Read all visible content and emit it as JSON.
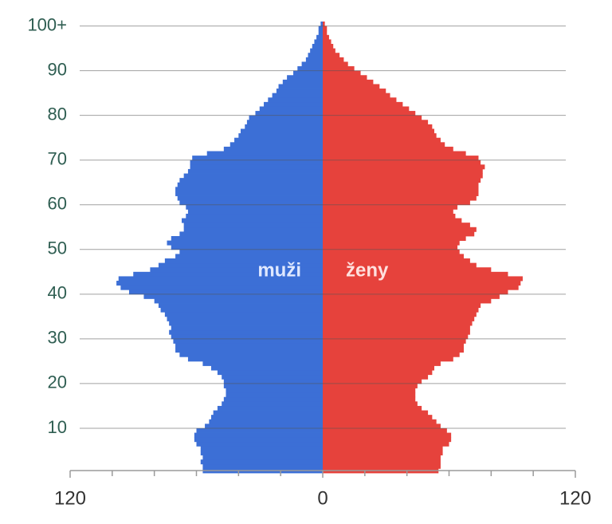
{
  "chart_data": {
    "type": "population-pyramid",
    "y": [
      0,
      1,
      2,
      3,
      4,
      5,
      6,
      7,
      8,
      9,
      10,
      11,
      12,
      13,
      14,
      15,
      16,
      17,
      18,
      19,
      20,
      21,
      22,
      23,
      24,
      25,
      26,
      27,
      28,
      29,
      30,
      31,
      32,
      33,
      34,
      35,
      36,
      37,
      38,
      39,
      40,
      41,
      42,
      43,
      44,
      45,
      46,
      47,
      48,
      49,
      50,
      51,
      52,
      53,
      54,
      55,
      56,
      57,
      58,
      59,
      60,
      61,
      62,
      63,
      64,
      65,
      66,
      67,
      68,
      69,
      70,
      71,
      72,
      73,
      74,
      75,
      76,
      77,
      78,
      79,
      80,
      81,
      82,
      83,
      84,
      85,
      86,
      87,
      88,
      89,
      90,
      91,
      92,
      93,
      94,
      95,
      96,
      97,
      98,
      99,
      100
    ],
    "series": [
      {
        "name": "muži",
        "color": "#3c6fd6",
        "side": "left",
        "values": [
          57,
          57,
          58,
          57,
          58,
          58,
          60,
          61,
          61,
          60,
          56,
          54,
          53,
          52,
          50,
          48,
          47,
          46,
          46,
          47,
          47,
          48,
          50,
          53,
          57,
          64,
          68,
          70,
          70,
          71,
          72,
          73,
          72,
          73,
          74,
          75,
          77,
          78,
          80,
          85,
          92,
          96,
          98,
          97,
          90,
          82,
          78,
          75,
          70,
          68,
          72,
          74,
          72,
          68,
          66,
          66,
          67,
          65,
          64,
          65,
          68,
          69,
          70,
          70,
          69,
          68,
          66,
          64,
          63,
          63,
          62,
          55,
          47,
          44,
          42,
          40,
          39,
          37,
          36,
          35,
          32,
          30,
          28,
          26,
          24,
          22,
          21,
          19,
          17,
          14,
          12,
          10,
          8,
          7,
          6,
          5,
          4,
          3,
          2,
          2,
          1
        ]
      },
      {
        "name": "ženy",
        "color": "#e6423c",
        "side": "right",
        "values": [
          55,
          56,
          56,
          56,
          57,
          57,
          60,
          61,
          61,
          59,
          56,
          54,
          52,
          50,
          47,
          45,
          44,
          44,
          44,
          45,
          47,
          50,
          52,
          53,
          56,
          62,
          65,
          67,
          67,
          68,
          69,
          70,
          70,
          71,
          72,
          73,
          74,
          75,
          80,
          84,
          88,
          93,
          94,
          95,
          88,
          80,
          73,
          70,
          67,
          65,
          64,
          65,
          68,
          72,
          73,
          70,
          66,
          63,
          62,
          64,
          70,
          73,
          74,
          74,
          74,
          75,
          76,
          76,
          77,
          75,
          74,
          68,
          62,
          58,
          56,
          54,
          53,
          52,
          50,
          47,
          44,
          41,
          38,
          35,
          32,
          30,
          27,
          24,
          21,
          18,
          15,
          12,
          10,
          8,
          6,
          5,
          4,
          3,
          2,
          2,
          1
        ]
      }
    ],
    "xlim": [
      -120,
      120
    ],
    "xticks": [
      {
        "value": -120,
        "label": "120"
      },
      0,
      {
        "value": 120,
        "label": "120"
      }
    ],
    "xminorticks": [
      -100,
      -80,
      -60,
      -40,
      -20,
      20,
      40,
      60,
      80,
      100
    ],
    "ylim": [
      0,
      101
    ],
    "yticks": [
      10,
      20,
      30,
      40,
      50,
      60,
      70,
      80,
      90,
      {
        "value": 100,
        "label": "100+"
      }
    ],
    "grid": true
  }
}
